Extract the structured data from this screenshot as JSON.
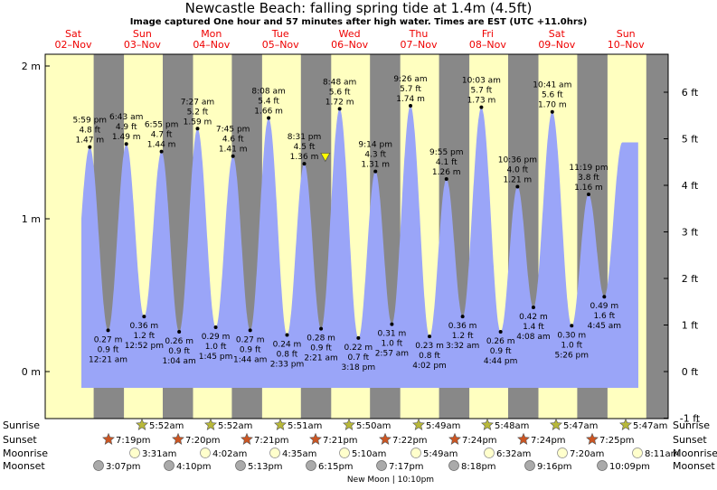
{
  "title": "Newcastle Beach: falling  spring tide at 1.4m (4.5ft)",
  "subtitle": "Image captured One hour and 57 minutes after high water. Times are EST (UTC +11.0hrs)",
  "colors": {
    "day_bg": "#ffffc0",
    "night_bg": "#888888",
    "tide_fill": "#9aa5f8",
    "day_label": "#ee0000",
    "marker": "#ffff00",
    "sun_star": "#b8b83a",
    "set_star": "#cc5522",
    "moonrise_circle": "#ffffcc",
    "moonset_circle": "#aaaaaa"
  },
  "chart_data": {
    "type": "area",
    "title": "Newcastle Beach: falling  spring tide at 1.4m (4.5ft)",
    "x_unit": "time (EST)",
    "left_axis_ticks": [
      "0 m",
      "1 m",
      "2 m"
    ],
    "right_axis_ticks": [
      "-1 ft",
      "0 ft",
      "1 ft",
      "2 ft",
      "3 ft",
      "4 ft",
      "5 ft",
      "6 ft"
    ],
    "ylim_m": [
      -0.22,
      2.06
    ],
    "xlim_days": [
      0.35,
      8.42
    ],
    "current_level_m": 1.4,
    "current_time_day": 4.16,
    "days": [
      {
        "name": "Sat",
        "date": "02–Nov"
      },
      {
        "name": "Sun",
        "date": "03–Nov"
      },
      {
        "name": "Mon",
        "date": "04–Nov"
      },
      {
        "name": "Tue",
        "date": "05–Nov"
      },
      {
        "name": "Wed",
        "date": "06–Nov"
      },
      {
        "name": "Thu",
        "date": "07–Nov"
      },
      {
        "name": "Fri",
        "date": "08–Nov"
      },
      {
        "name": "Sat",
        "date": "09–Nov"
      },
      {
        "name": "Sun",
        "date": "10–Nov"
      }
    ],
    "high_tides": [
      {
        "t": 0.75,
        "m": 1.47,
        "time": "5:59 pm",
        "ft": "4.8 ft",
        "m_label": "1.47 m"
      },
      {
        "t": 1.279,
        "m": 1.49,
        "time": "6:43 am",
        "ft": "4.9 ft",
        "m_label": "1.49 m"
      },
      {
        "t": 1.788,
        "m": 1.44,
        "time": "6:55 pm",
        "ft": "4.7 ft",
        "m_label": "1.44 m"
      },
      {
        "t": 2.31,
        "m": 1.59,
        "time": "7:27 am",
        "ft": "5.2 ft",
        "m_label": "1.59 m"
      },
      {
        "t": 2.823,
        "m": 1.41,
        "time": "7:45 pm",
        "ft": "4.6 ft",
        "m_label": "1.41 m"
      },
      {
        "t": 3.339,
        "m": 1.66,
        "time": "8:08 am",
        "ft": "5.4 ft",
        "m_label": "1.66 m"
      },
      {
        "t": 3.855,
        "m": 1.36,
        "time": "8:31 pm",
        "ft": "4.5 ft",
        "m_label": "1.36 m"
      },
      {
        "t": 4.367,
        "m": 1.72,
        "time": "8:48 am",
        "ft": "5.6 ft",
        "m_label": "1.72 m"
      },
      {
        "t": 4.885,
        "m": 1.31,
        "time": "9:14 pm",
        "ft": "4.3 ft",
        "m_label": "1.31 m"
      },
      {
        "t": 5.393,
        "m": 1.74,
        "time": "9:26 am",
        "ft": "5.7 ft",
        "m_label": "1.74 m"
      },
      {
        "t": 5.913,
        "m": 1.26,
        "time": "9:55 pm",
        "ft": "4.1 ft",
        "m_label": "1.26 m"
      },
      {
        "t": 6.419,
        "m": 1.73,
        "time": "10:03 am",
        "ft": "5.7 ft",
        "m_label": "1.73 m"
      },
      {
        "t": 6.942,
        "m": 1.21,
        "time": "10:36 pm",
        "ft": "4.0 ft",
        "m_label": "1.21 m"
      },
      {
        "t": 7.445,
        "m": 1.7,
        "time": "10:41 am",
        "ft": "5.6 ft",
        "m_label": "1.70 m"
      },
      {
        "t": 7.971,
        "m": 1.16,
        "time": "11:19 pm",
        "ft": "3.8 ft",
        "m_label": "1.16 m"
      }
    ],
    "low_tides": [
      {
        "t": 1.015,
        "m": 0.27,
        "time": "12:21 am",
        "ft": "0.9 ft",
        "m_label": "0.27 m"
      },
      {
        "t": 1.536,
        "m": 0.36,
        "time": "12:52 pm",
        "ft": "1.2 ft",
        "m_label": "0.36 m"
      },
      {
        "t": 2.044,
        "m": 0.26,
        "time": "1:04 am",
        "ft": "0.9 ft",
        "m_label": "0.26 m"
      },
      {
        "t": 2.573,
        "m": 0.29,
        "time": "1:45 pm",
        "ft": "1.0 ft",
        "m_label": "0.29 m"
      },
      {
        "t": 3.072,
        "m": 0.27,
        "time": "1:44 am",
        "ft": "0.9 ft",
        "m_label": "0.27 m"
      },
      {
        "t": 3.606,
        "m": 0.24,
        "time": "2:33 pm",
        "ft": "0.8 ft",
        "m_label": "0.24 m"
      },
      {
        "t": 4.098,
        "m": 0.28,
        "time": "2:21 am",
        "ft": "0.9 ft",
        "m_label": "0.28 m"
      },
      {
        "t": 4.638,
        "m": 0.22,
        "time": "3:18 pm",
        "ft": "0.7 ft",
        "m_label": "0.22 m"
      },
      {
        "t": 5.123,
        "m": 0.31,
        "time": "2:57 am",
        "ft": "1.0 ft",
        "m_label": "0.31 m"
      },
      {
        "t": 5.668,
        "m": 0.23,
        "time": "4:02 pm",
        "ft": "0.8 ft",
        "m_label": "0.23 m"
      },
      {
        "t": 6.147,
        "m": 0.36,
        "time": "3:32 am",
        "ft": "1.2 ft",
        "m_label": "0.36 m"
      },
      {
        "t": 6.697,
        "m": 0.26,
        "time": "4:44 pm",
        "ft": "0.9 ft",
        "m_label": "0.26 m"
      },
      {
        "t": 7.172,
        "m": 0.42,
        "time": "4:08 am",
        "ft": "1.4 ft",
        "m_label": "0.42 m"
      },
      {
        "t": 7.726,
        "m": 0.3,
        "time": "5:26 pm",
        "ft": "1.0 ft",
        "m_label": "0.30 m"
      },
      {
        "t": 8.198,
        "m": 0.49,
        "time": "4:45 am",
        "ft": "1.6 ft",
        "m_label": "0.49 m"
      }
    ]
  },
  "almanac": {
    "row_labels": [
      "Sunrise",
      "Sunset",
      "Moonrise",
      "Moonset"
    ],
    "sunrise": [
      "5:52am",
      "5:52am",
      "5:51am",
      "5:50am",
      "5:49am",
      "5:48am",
      "5:47am",
      "5:47am"
    ],
    "sunset": [
      "7:19pm",
      "7:20pm",
      "7:21pm",
      "7:21pm",
      "7:22pm",
      "7:24pm",
      "7:24pm",
      "7:25pm"
    ],
    "moonrise": [
      "3:31am",
      "4:02am",
      "4:35am",
      "5:10am",
      "5:49am",
      "6:32am",
      "7:20am",
      "8:11am"
    ],
    "moonset": [
      "3:07pm",
      "4:10pm",
      "5:13pm",
      "6:15pm",
      "7:17pm",
      "8:18pm",
      "9:16pm",
      "10:09pm"
    ],
    "new_moon_note": "New Moon | 10:10pm"
  }
}
